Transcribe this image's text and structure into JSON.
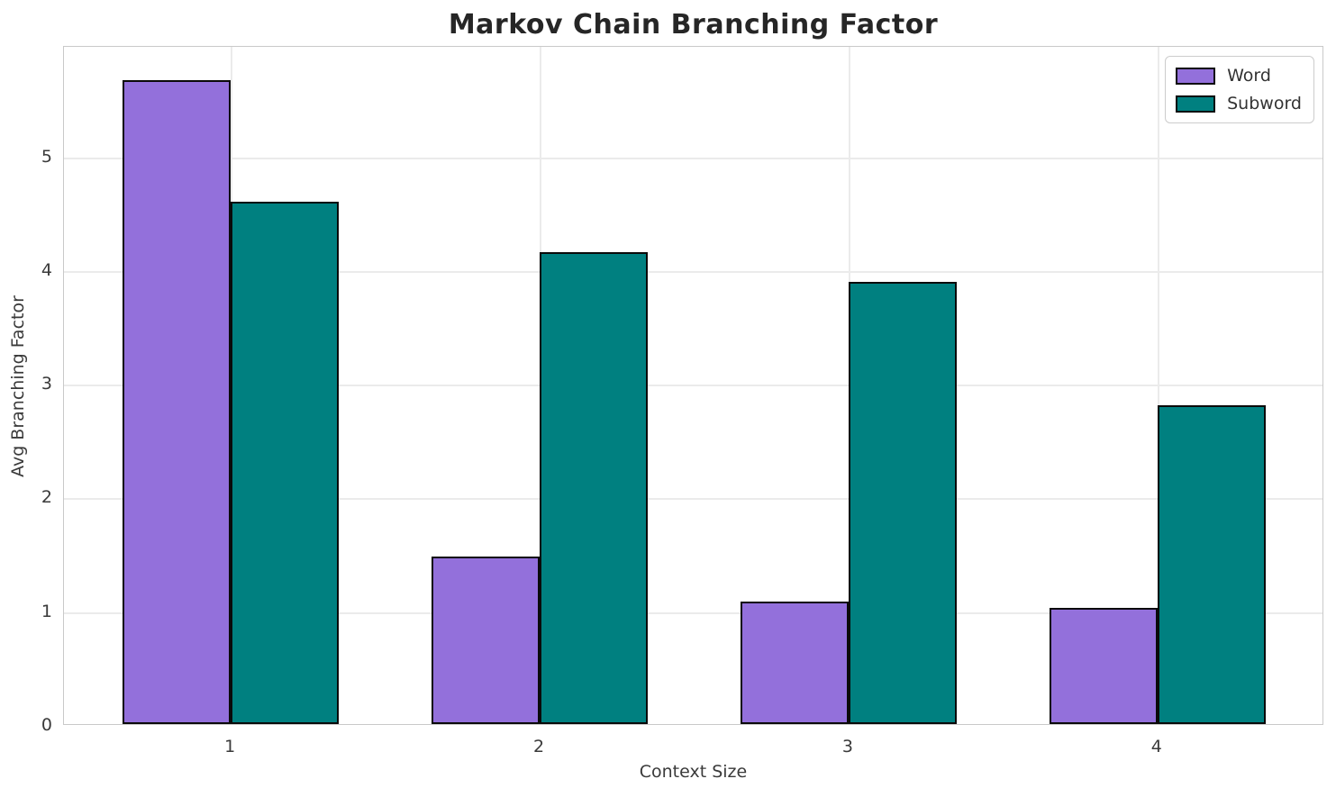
{
  "title": "Markov Chain Branching Factor",
  "chart_data": {
    "type": "bar",
    "title": "Markov Chain Branching Factor",
    "xlabel": "Context Size",
    "ylabel": "Avg Branching Factor",
    "categories": [
      "1",
      "2",
      "3",
      "4"
    ],
    "series": [
      {
        "name": "Word",
        "color": "#9370DB",
        "values": [
          5.66,
          1.47,
          1.08,
          1.02
        ]
      },
      {
        "name": "Subword",
        "color": "#008080",
        "values": [
          4.59,
          4.15,
          3.89,
          2.8
        ]
      }
    ],
    "yticks": [
      0,
      1,
      2,
      3,
      4,
      5
    ],
    "ylim": [
      0,
      5.97
    ],
    "xlim": [
      -0.54,
      3.54
    ],
    "bar_width_data_units": 0.35,
    "grid": true,
    "legend_position": "upper right",
    "colors": {
      "bar_edge": "#0a0a0a",
      "grid_line": "#ebebeb",
      "spine": "#c9c9c9",
      "title_text": "#262626",
      "tick_text": "#3a3a3a",
      "background": "#ffffff"
    }
  }
}
